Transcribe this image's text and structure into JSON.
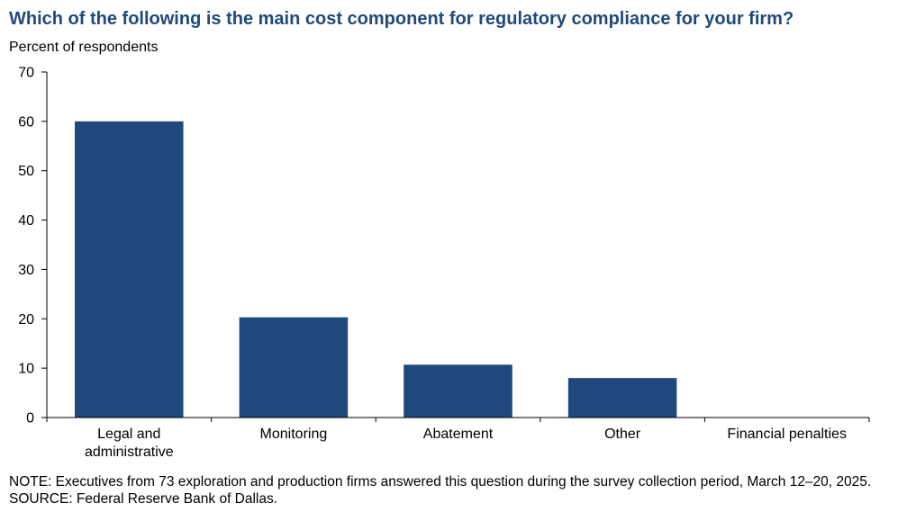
{
  "chart_data": {
    "type": "bar",
    "title": "Which of the following  is the main cost component for regulatory compliance for your firm?",
    "ylabel": "Percent  of respondents",
    "xlabel": "",
    "categories": [
      [
        "Legal and",
        "administrative"
      ],
      [
        "Monitoring"
      ],
      [
        "Abatement"
      ],
      [
        "Other"
      ],
      [
        "Financial penalties"
      ]
    ],
    "values": [
      60,
      20.3,
      10.7,
      8,
      0
    ],
    "ylim": [
      0,
      70
    ],
    "yticks": [
      0,
      10,
      20,
      30,
      40,
      50,
      60,
      70
    ],
    "bar_color": "#1f497d",
    "grid": false
  },
  "notes": {
    "note": "NOTE:  Executives  from 73 exploration  and production firms answered this question  during the survey collection period, March 12–20, 2025.",
    "source": "SOURCE:  Federal Reserve Bank of Dallas."
  }
}
